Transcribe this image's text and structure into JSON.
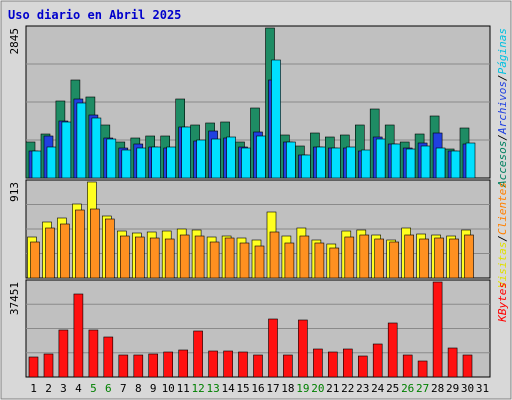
{
  "chart_data": {
    "type": "bar",
    "title": "Uso diario en Abril 2025",
    "days": [
      "1",
      "2",
      "3",
      "4",
      "5",
      "6",
      "7",
      "8",
      "9",
      "10",
      "11",
      "12",
      "13",
      "14",
      "15",
      "16",
      "17",
      "18",
      "19",
      "20",
      "21",
      "22",
      "23",
      "24",
      "25",
      "26",
      "27",
      "28",
      "29",
      "30",
      "31"
    ],
    "weekend_days": [
      5,
      6,
      12,
      13,
      19,
      20,
      26,
      27
    ],
    "colors": {
      "background": "#c0c0c0",
      "frame": "#d8d8d8",
      "title": "#0000cc",
      "weekend_label": "#008000",
      "hits": "#1e8c64",
      "files": "#2040e0",
      "pages": "#00e0ff",
      "visits": "#ffff20",
      "sites": "#ff9020",
      "kbytes": "#ff1010"
    },
    "panels": [
      {
        "id": "top",
        "ymax_label": "2845",
        "ymax": 2845,
        "side_labels": [
          {
            "text": "Accesos",
            "color": "#008060"
          },
          {
            "text": "/",
            "color": "#000000"
          },
          {
            "text": "Archivos",
            "color": "#2040e0"
          },
          {
            "text": "/",
            "color": "#000000"
          },
          {
            "text": "Páginas",
            "color": "#00c0e0"
          }
        ],
        "series": [
          {
            "name": "Accesos",
            "color": "#1e8c64",
            "values": [
              690,
              840,
              1460,
              1850,
              1530,
              1010,
              690,
              760,
              790,
              790,
              1490,
              1010,
              1040,
              1070,
              690,
              1320,
              2845,
              810,
              600,
              860,
              770,
              820,
              1010,
              1310,
              1010,
              690,
              830,
              1180,
              550,
              940
            ]
          },
          {
            "name": "Archivos",
            "color": "#2040e0",
            "values": [
              520,
              800,
              1080,
              1500,
              1200,
              760,
              560,
              640,
              580,
              560,
              960,
              700,
              900,
              750,
              580,
              880,
              1850,
              690,
              440,
              580,
              570,
              560,
              520,
              780,
              640,
              560,
              660,
              860,
              510,
              640
            ]
          },
          {
            "name": "Páginas",
            "color": "#00e0ff",
            "values": [
              520,
              590,
              1060,
              1420,
              1130,
              740,
              540,
              560,
              580,
              590,
              960,
              720,
              740,
              780,
              560,
              800,
              2240,
              690,
              440,
              590,
              570,
              580,
              540,
              740,
              640,
              550,
              600,
              570,
              510,
              670
            ]
          }
        ]
      },
      {
        "id": "middle",
        "ymax_label": "913",
        "ymax": 913,
        "side_labels": [
          {
            "text": "Visitas",
            "color": "#e0e000"
          },
          {
            "text": "/",
            "color": "#000000"
          },
          {
            "text": "Clientes",
            "color": "#ff8000"
          }
        ],
        "series": [
          {
            "name": "Visitas",
            "color": "#ffff20",
            "values": [
              390,
              530,
              570,
              700,
              910,
              590,
              450,
              430,
              440,
              450,
              470,
              460,
              390,
              400,
              380,
              360,
              630,
              400,
              480,
              360,
              320,
              450,
              460,
              410,
              360,
              480,
              420,
              410,
              400,
              460
            ]
          },
          {
            "name": "Clientes",
            "color": "#ff9020",
            "values": [
              340,
              480,
              510,
              650,
              660,
              560,
              400,
              390,
              380,
              370,
              410,
              400,
              340,
              380,
              330,
              300,
              440,
              330,
              400,
              330,
              290,
              390,
              410,
              370,
              340,
              410,
              370,
              380,
              370,
              410
            ]
          }
        ]
      },
      {
        "id": "bottom",
        "ymax_label": "37451",
        "ymax": 37451,
        "side_labels": [
          {
            "text": "KBytes",
            "color": "#ff0000"
          }
        ],
        "series": [
          {
            "name": "KBytes",
            "color": "#ff1010",
            "values": [
              8000,
              9200,
              18500,
              32800,
              18500,
              15800,
              8500,
              8500,
              9000,
              10000,
              10500,
              18000,
              10300,
              10200,
              10000,
              8600,
              23000,
              8700,
              22500,
              11200,
              9700,
              11200,
              8300,
              13000,
              21300,
              8800,
              6400,
              37451,
              11500,
              8600
            ]
          }
        ]
      }
    ]
  }
}
